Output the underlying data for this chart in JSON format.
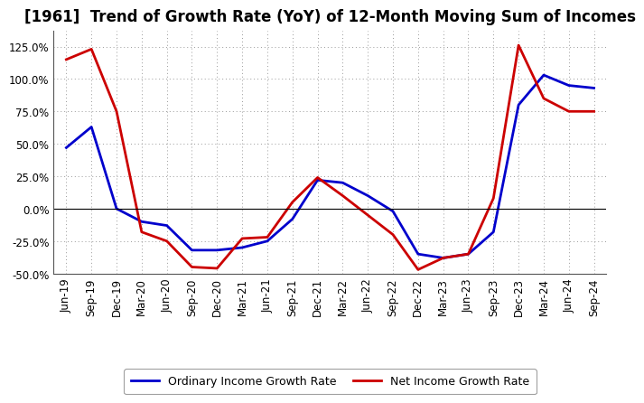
{
  "title": "[1961]  Trend of Growth Rate (YoY) of 12-Month Moving Sum of Incomes",
  "x_labels": [
    "Jun-19",
    "Sep-19",
    "Dec-19",
    "Mar-20",
    "Jun-20",
    "Sep-20",
    "Dec-20",
    "Mar-21",
    "Jun-21",
    "Sep-21",
    "Dec-21",
    "Mar-22",
    "Jun-22",
    "Sep-22",
    "Dec-22",
    "Mar-23",
    "Jun-23",
    "Sep-23",
    "Dec-23",
    "Mar-24",
    "Jun-24",
    "Sep-24"
  ],
  "ordinary_income": [
    47,
    63,
    0,
    -10,
    -13,
    -32,
    -32,
    -30,
    -25,
    -8,
    22,
    20,
    10,
    -2,
    -35,
    -38,
    -35,
    -18,
    80,
    103,
    95,
    93
  ],
  "net_income": [
    115,
    123,
    75,
    -18,
    -25,
    -45,
    -46,
    -23,
    -22,
    5,
    24,
    10,
    -5,
    -20,
    -47,
    -38,
    -35,
    8,
    126,
    85,
    75,
    75
  ],
  "ordinary_color": "#0000cc",
  "net_color": "#cc0000",
  "ylim": [
    -50,
    137
  ],
  "yticks": [
    -50,
    -25,
    0,
    25,
    50,
    75,
    100,
    125
  ],
  "background_color": "#ffffff",
  "grid_color": "#999999",
  "legend_ordinary": "Ordinary Income Growth Rate",
  "legend_net": "Net Income Growth Rate",
  "title_fontsize": 12,
  "tick_fontsize": 8.5,
  "line_width": 2.0
}
